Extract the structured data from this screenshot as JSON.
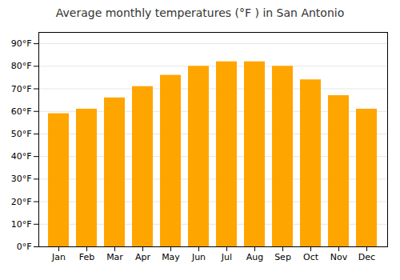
{
  "chart_data": {
    "type": "bar",
    "title": "Average monthly temperatures (°F ) in San Antonio",
    "categories": [
      "Jan",
      "Feb",
      "Mar",
      "Apr",
      "May",
      "Jun",
      "Jul",
      "Aug",
      "Sep",
      "Oct",
      "Nov",
      "Dec"
    ],
    "values": [
      59,
      61,
      66,
      71,
      76,
      80,
      82,
      82,
      80,
      74,
      67,
      61
    ],
    "color": "#FFA500",
    "ylim": [
      0,
      95
    ],
    "yticks": [
      {
        "value": 0,
        "label": "0°F"
      },
      {
        "value": 10,
        "label": "10°F"
      },
      {
        "value": 20,
        "label": "20°F"
      },
      {
        "value": 30,
        "label": "30°F"
      },
      {
        "value": 40,
        "label": "40°F"
      },
      {
        "value": 50,
        "label": "50°F"
      },
      {
        "value": 60,
        "label": "60°F"
      },
      {
        "value": 70,
        "label": "70°F"
      },
      {
        "value": 80,
        "label": "80°F"
      },
      {
        "value": 90,
        "label": "90°F"
      }
    ],
    "grid": true
  }
}
